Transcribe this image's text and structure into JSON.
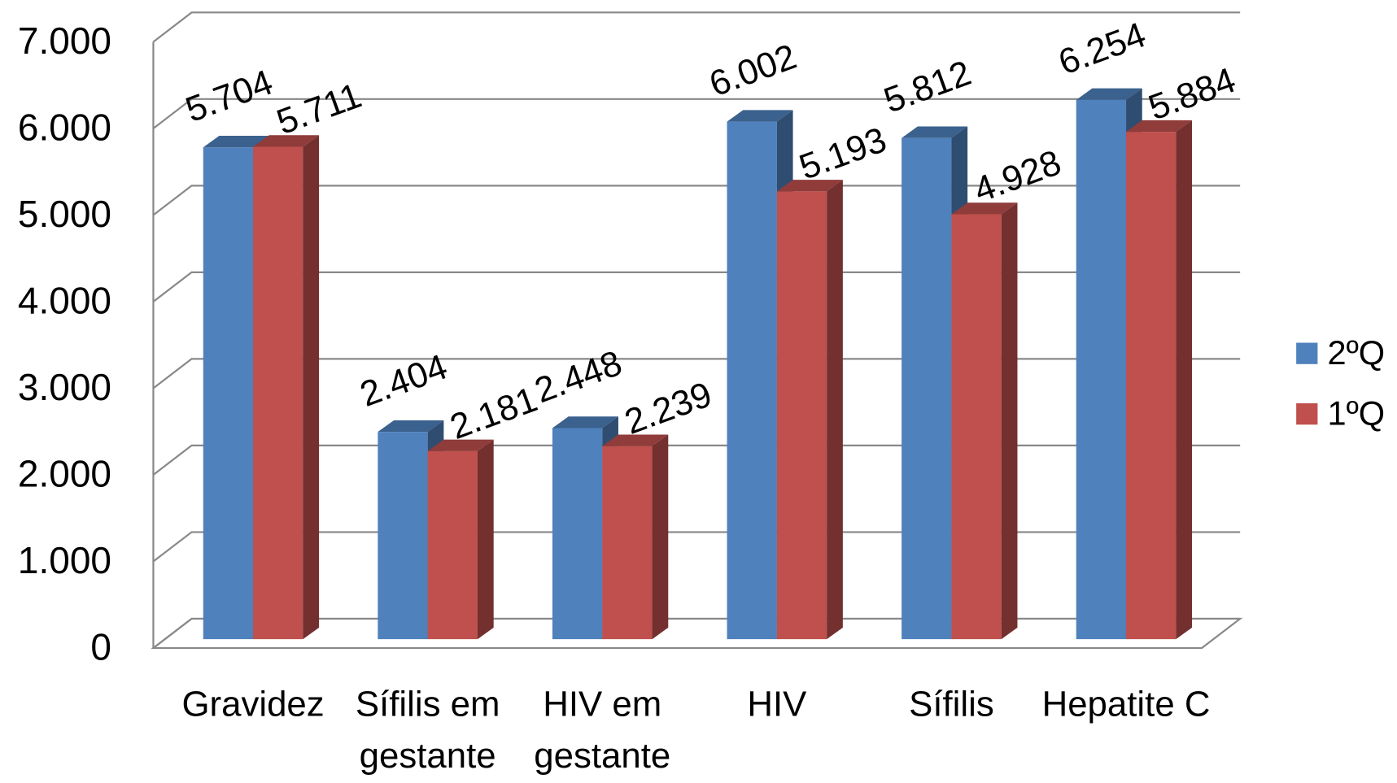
{
  "chart_data": {
    "type": "bar3d",
    "categories": [
      "Gravidez",
      "Sífilis em gestante",
      "HIV em gestante",
      "HIV",
      "Sífilis",
      "Hepatite C"
    ],
    "series": [
      {
        "name": "2ºQ",
        "color": "#4f81bd",
        "values": [
          5704,
          2404,
          2448,
          6002,
          5812,
          6254
        ],
        "value_labels": [
          "5.704",
          "2.404",
          "2.448",
          "6.002",
          "5.812",
          "6.254"
        ]
      },
      {
        "name": "1ºQ",
        "color": "#c0504d",
        "values": [
          5711,
          2181,
          2239,
          5193,
          4928,
          5884
        ],
        "value_labels": [
          "5.711",
          "2.181",
          "2.239",
          "5.193",
          "4.928",
          "5.884"
        ]
      }
    ],
    "ylim": [
      0,
      7000
    ],
    "yticks": [
      0,
      {
        "value": 1000,
        "label": "1.000"
      },
      {
        "value": 2000,
        "label": "2.000"
      },
      {
        "value": 3000,
        "label": "3.000"
      },
      {
        "value": 4000,
        "label": "4.000"
      },
      {
        "value": 5000,
        "label": "5.000"
      },
      {
        "value": 6000,
        "label": "6.000"
      },
      {
        "value": 7000,
        "label": "7.000"
      }
    ],
    "grid": true,
    "legend": "right"
  }
}
